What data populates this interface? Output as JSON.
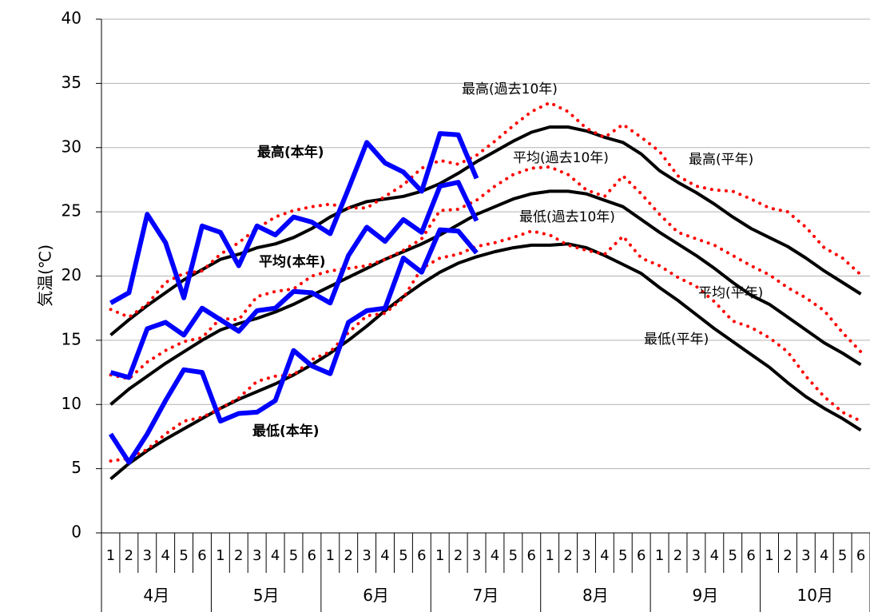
{
  "chart_data": {
    "type": "line",
    "ylabel": "気温(℃)",
    "ylim": [
      0,
      40
    ],
    "yticks": [
      0,
      5,
      10,
      15,
      20,
      25,
      30,
      35,
      40
    ],
    "grid": "horizontal",
    "legend": "none",
    "months": [
      "4月",
      "5月",
      "6月",
      "7月",
      "8月",
      "9月",
      "10月"
    ],
    "pentads_per_month": [
      "1",
      "2",
      "3",
      "4",
      "5",
      "6"
    ],
    "colors": {
      "this_year": "#0000ff",
      "past10": "#ff0000",
      "normal": "#000000"
    },
    "series": [
      {
        "name": "最高(本年)",
        "style": "this_year",
        "values": [
          17.9,
          18.7,
          24.8,
          22.6,
          18.3,
          23.9,
          23.4,
          20.8,
          23.9,
          23.2,
          24.6,
          24.2,
          23.3,
          26.8,
          30.4,
          28.8,
          28.1,
          26.6,
          31.1,
          31.0,
          27.6
        ]
      },
      {
        "name": "平均(本年)",
        "style": "this_year",
        "values": [
          12.5,
          12.1,
          15.9,
          16.4,
          15.4,
          17.5,
          16.6,
          15.7,
          17.3,
          17.5,
          18.8,
          18.7,
          17.9,
          21.6,
          23.8,
          22.7,
          24.4,
          23.4,
          27.0,
          27.3,
          24.3
        ]
      },
      {
        "name": "最低(本年)",
        "style": "this_year",
        "values": [
          7.7,
          5.5,
          7.7,
          10.3,
          12.7,
          12.5,
          8.7,
          9.3,
          9.4,
          10.3,
          14.2,
          13.0,
          12.4,
          16.4,
          17.3,
          17.5,
          21.4,
          20.3,
          23.6,
          23.5,
          21.8
        ]
      },
      {
        "name": "最高(過去10年)",
        "style": "past10",
        "values": [
          17.4,
          16.8,
          17.8,
          19.5,
          20.2,
          20.4,
          21.7,
          22.6,
          23.7,
          24.6,
          25.1,
          25.4,
          25.6,
          25.3,
          25.3,
          26.2,
          27.1,
          28.4,
          29.0,
          28.7,
          29.4,
          30.5,
          31.7,
          32.8,
          33.5,
          32.8,
          31.5,
          30.8,
          31.8,
          30.8,
          29.7,
          27.8,
          27.0,
          26.7,
          26.6,
          26.0,
          25.3,
          25.0,
          23.8,
          22.2,
          21.4,
          20.1
        ]
      },
      {
        "name": "平均(過去10年)",
        "style": "past10",
        "values": [
          12.3,
          12.0,
          13.3,
          14.2,
          14.9,
          15.2,
          16.7,
          16.6,
          18.4,
          18.8,
          19.0,
          20.0,
          20.4,
          20.6,
          20.8,
          21.3,
          22.0,
          22.9,
          25.1,
          25.2,
          25.9,
          27.0,
          27.9,
          28.4,
          28.5,
          27.9,
          26.7,
          26.2,
          27.8,
          26.4,
          24.8,
          23.4,
          22.9,
          22.4,
          21.6,
          20.8,
          20.1,
          19.1,
          18.3,
          17.3,
          15.6,
          14.1
        ]
      },
      {
        "name": "最低(過去10年)",
        "style": "past10",
        "values": [
          5.6,
          5.8,
          6.5,
          7.7,
          8.7,
          9.0,
          9.7,
          10.5,
          11.8,
          12.2,
          12.3,
          13.5,
          14.1,
          15.6,
          16.9,
          17.1,
          18.3,
          20.6,
          21.4,
          21.7,
          22.3,
          22.6,
          23.0,
          23.5,
          23.2,
          22.4,
          22.0,
          21.7,
          23.1,
          21.4,
          20.8,
          19.9,
          19.2,
          18.0,
          16.5,
          16.0,
          15.2,
          14.1,
          12.2,
          10.6,
          9.4,
          8.7
        ]
      },
      {
        "name": "最高(平年)",
        "style": "normal",
        "values": [
          15.4,
          16.6,
          17.7,
          18.7,
          19.7,
          20.5,
          21.3,
          21.7,
          22.2,
          22.5,
          23.0,
          23.7,
          24.6,
          25.3,
          25.8,
          26.0,
          26.2,
          26.6,
          27.2,
          28.0,
          28.9,
          29.7,
          30.5,
          31.2,
          31.6,
          31.6,
          31.3,
          30.8,
          30.4,
          29.5,
          28.2,
          27.3,
          26.5,
          25.6,
          24.6,
          23.7,
          23.0,
          22.3,
          21.4,
          20.4,
          19.5,
          18.6
        ]
      },
      {
        "name": "平均(平年)",
        "style": "normal",
        "values": [
          10.0,
          11.2,
          12.2,
          13.2,
          14.1,
          15.0,
          15.8,
          16.3,
          16.7,
          17.2,
          17.8,
          18.5,
          19.2,
          19.9,
          20.6,
          21.3,
          21.9,
          22.5,
          23.2,
          24.0,
          24.8,
          25.4,
          26.0,
          26.4,
          26.6,
          26.6,
          26.4,
          25.9,
          25.4,
          24.4,
          23.4,
          22.5,
          21.6,
          20.6,
          19.5,
          18.5,
          17.8,
          16.8,
          15.8,
          14.8,
          14.0,
          13.1
        ]
      },
      {
        "name": "最低(平年)",
        "style": "normal",
        "values": [
          4.2,
          5.4,
          6.4,
          7.3,
          8.1,
          8.9,
          9.7,
          10.4,
          11.0,
          11.6,
          12.3,
          13.1,
          14.0,
          15.0,
          16.1,
          17.3,
          18.4,
          19.4,
          20.3,
          21.0,
          21.5,
          21.9,
          22.2,
          22.4,
          22.4,
          22.5,
          22.2,
          21.6,
          20.9,
          20.2,
          19.1,
          18.1,
          17.0,
          15.9,
          14.9,
          13.9,
          12.9,
          11.7,
          10.6,
          9.7,
          8.9,
          8.0
        ]
      }
    ],
    "annotations": {
      "max_this_year": "最高(本年)",
      "mean_this_year": "平均(本年)",
      "min_this_year": "最低(本年)",
      "max_past10": "最高(過去10年)",
      "mean_past10": "平均(過去10年)",
      "min_past10": "最低(過去10年)",
      "max_normal": "最高(平年)",
      "mean_normal": "平均(平年)",
      "min_normal": "最低(平年)"
    }
  }
}
